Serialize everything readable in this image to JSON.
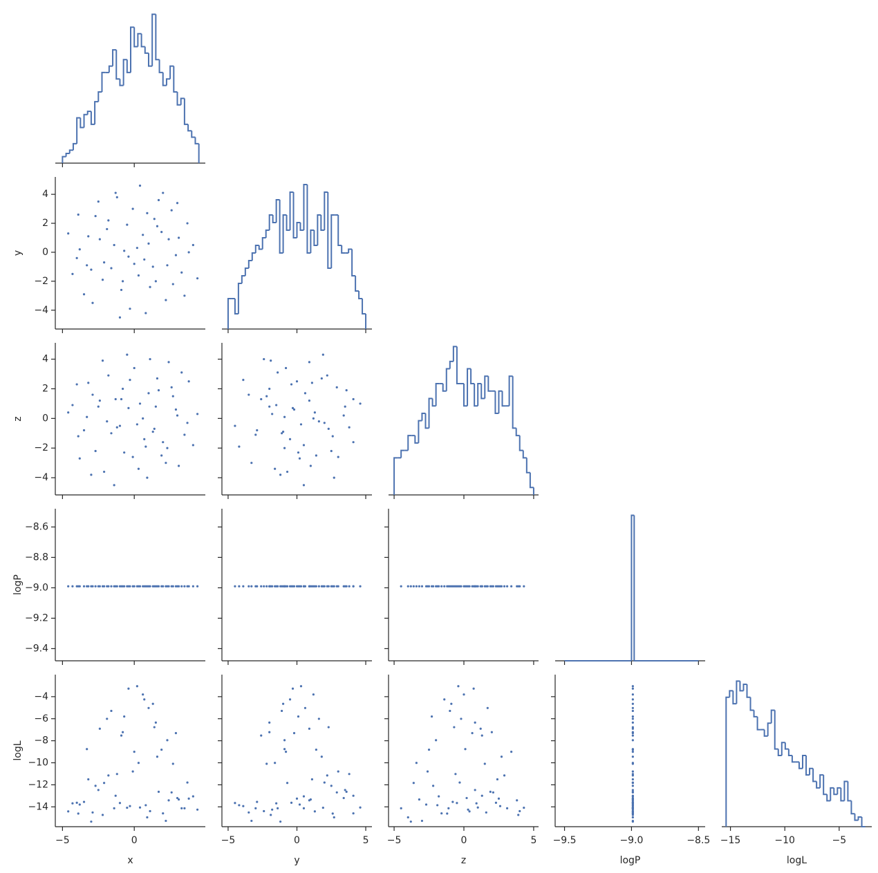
{
  "chart_data": {
    "type": "pairplot",
    "color": "#4c72b0",
    "variables": [
      {
        "name": "x",
        "xlim": [
          -5.5,
          4.95
        ],
        "xticks": [
          {
            "value": -5,
            "label": "−5"
          },
          0
        ],
        "hist": {
          "bins": [
            -5,
            -4.75,
            -4.5,
            -4.25,
            -4,
            -3.75,
            -3.5,
            -3.25,
            -3,
            -2.75,
            -2.5,
            -2.25,
            -2,
            -1.75,
            -1.5,
            -1.25,
            -1,
            -0.75,
            -0.5,
            -0.25,
            0,
            0.25,
            0.5,
            0.75,
            1,
            1.25,
            1.5,
            1.75,
            2,
            2.25,
            2.5,
            2.75,
            3,
            3.25,
            3.5,
            3.75,
            4,
            4.25,
            4.5
          ],
          "counts": [
            2,
            3,
            4,
            6,
            14,
            11,
            15,
            16,
            12,
            19,
            22,
            28,
            28,
            30,
            35,
            26,
            24,
            32,
            28,
            42,
            36,
            40,
            36,
            34,
            30,
            46,
            32,
            28,
            24,
            26,
            30,
            22,
            18,
            20,
            12,
            10,
            8,
            6
          ],
          "ylim": [
            0,
            47
          ]
        },
        "values": [
          0.2,
          1.5,
          -3.2,
          4.1,
          -1.2,
          2.6,
          -4.3,
          0.8,
          -2.1,
          3.3,
          -0.5,
          1.0,
          -2.7,
          2.2,
          -0.9,
          3.7,
          -3.8,
          0.4,
          -1.6,
          1.9,
          -4.6,
          2.9,
          -0.3,
          -2.4,
          0.9,
          3.0,
          -3.5,
          1.3,
          -1.8,
          0.0,
          4.4,
          -2.9,
          2.4,
          -0.7,
          1.7,
          -3.9,
          -1.0,
          3.5,
          0.6,
          -2.2,
          1.1,
          -4.0,
          2.0,
          -1.4,
          0.3,
          -0.1,
          3.8,
          -3.0,
          1.6,
          -0.4,
          2.7,
          -2.5,
          0.7,
          -1.9,
          3.1,
          -3.3,
          1.4,
          -0.8,
          2.3,
          -1.3
        ]
      },
      {
        "name": "y",
        "xlim": [
          -5.45,
          5.45
        ],
        "xticks": [
          {
            "value": -5,
            "label": "−5"
          },
          0,
          5
        ],
        "ylim": [
          -5.3,
          5.2
        ],
        "yticks": [
          {
            "value": -4,
            "label": "−4"
          },
          {
            "value": -2,
            "label": "−2"
          },
          0,
          2,
          4
        ],
        "hist": {
          "bins": [
            -5,
            -4.75,
            -4.5,
            -4.25,
            -4,
            -3.75,
            -3.5,
            -3.25,
            -3,
            -2.75,
            -2.5,
            -2.25,
            -2,
            -1.75,
            -1.5,
            -1.25,
            -1,
            -0.75,
            -0.5,
            -0.25,
            0,
            0.25,
            0.5,
            0.75,
            1,
            1.25,
            1.5,
            1.75,
            2,
            2.25,
            2.5,
            2.75,
            3,
            3.25,
            3.5,
            3.75,
            4,
            4.25,
            4.5,
            4.75,
            5
          ],
          "counts": [
            8,
            8,
            4,
            12,
            14,
            16,
            18,
            20,
            22,
            21,
            24,
            26,
            30,
            28,
            34,
            20,
            30,
            26,
            36,
            24,
            28,
            26,
            38,
            20,
            26,
            22,
            30,
            26,
            36,
            16,
            30,
            30,
            22,
            20,
            20,
            21,
            14,
            10,
            8,
            4
          ],
          "ylim": [
            0,
            40
          ]
        },
        "values": [
          0.3,
          -2.0,
          1.1,
          0.5,
          3.8,
          2.9,
          -1.5,
          -4.2,
          -0.7,
          -1.4,
          1.9,
          0.6,
          2.5,
          -3.3,
          -2.6,
          2.0,
          0.2,
          4.6,
          -1.1,
          1.4,
          1.3,
          -0.2,
          -3.9,
          0.9,
          2.7,
          3.4,
          -2.9,
          -1.0,
          2.2,
          -0.8,
          -1.8,
          -3.5,
          0.9,
          0.1,
          3.6,
          2.6,
          -4.5,
          -3.0,
          1.2,
          -1.9,
          -2.4,
          -0.4,
          4.1,
          0.5,
          -1.6,
          3.0,
          0.0,
          -1.2,
          1.8,
          -0.3,
          -2.2,
          3.5,
          -0.5,
          1.6,
          1.0,
          -0.9,
          2.3,
          -2.0,
          -0.9,
          4.1
        ]
      },
      {
        "name": "z",
        "xlim": [
          -5.4,
          5.35
        ],
        "xticks": [
          {
            "value": -5,
            "label": "−5"
          },
          0,
          5
        ],
        "ylim": [
          -5.16,
          5.1
        ],
        "yticks": [
          {
            "value": -4,
            "label": "−4"
          },
          {
            "value": -2,
            "label": "−2"
          },
          0,
          2,
          4
        ],
        "hist": {
          "bins": [
            -5,
            -4.75,
            -4.5,
            -4.25,
            -4,
            -3.75,
            -3.5,
            -3.25,
            -3,
            -2.75,
            -2.5,
            -2.25,
            -2,
            -1.75,
            -1.5,
            -1.25,
            -1,
            -0.75,
            -0.5,
            -0.25,
            0,
            0.25,
            0.5,
            0.75,
            1,
            1.25,
            1.5,
            1.75,
            2,
            2.25,
            2.5,
            2.75,
            3,
            3.25,
            3.5,
            3.75,
            4,
            4.25,
            4.5,
            4.75,
            5
          ],
          "counts": [
            10,
            10,
            12,
            12,
            16,
            16,
            14,
            20,
            22,
            18,
            26,
            24,
            30,
            30,
            28,
            34,
            36,
            40,
            30,
            30,
            24,
            34,
            30,
            24,
            30,
            26,
            32,
            28,
            28,
            22,
            28,
            24,
            24,
            32,
            18,
            16,
            12,
            10,
            6,
            2
          ],
          "ylim": [
            0,
            41
          ]
        },
        "values": [
          -0.4,
          0.8,
          2.4,
          -1.8,
          -0.6,
          2.1,
          0.9,
          -1.9,
          -3.6,
          3.1,
          4.3,
          1.7,
          -2.2,
          -3.0,
          1.3,
          -0.3,
          -2.7,
          1.0,
          -1.0,
          -2.5,
          0.4,
          0.6,
          2.6,
          1.2,
          -4.0,
          0.2,
          -0.8,
          -0.9,
          2.9,
          3.4,
          0.3,
          1.6,
          3.8,
          -2.3,
          1.9,
          -1.2,
          -0.5,
          -1.1,
          0.0,
          3.9,
          4.0,
          2.3,
          -1.6,
          -4.5,
          -3.4,
          -2.6,
          2.5,
          -3.8,
          2.7,
          0.7,
          1.5,
          0.8,
          -1.4,
          -0.2,
          -3.2,
          0.1,
          -0.7,
          2.0,
          -2.0,
          1.3
        ]
      },
      {
        "name": "logP",
        "xlim": [
          -9.57,
          -8.45
        ],
        "xticks": [
          {
            "value": -9.5,
            "label": "−9.5"
          },
          {
            "value": -9.0,
            "label": "−9.0"
          },
          {
            "value": -8.5,
            "label": "−8.5"
          }
        ],
        "ylim": [
          -9.48,
          -8.48
        ],
        "yticks": [
          {
            "value": -9.4,
            "label": "−9.4"
          },
          {
            "value": -9.2,
            "label": "−9.2"
          },
          {
            "value": -9.0,
            "label": "−9.0"
          },
          {
            "value": -8.8,
            "label": "−8.8"
          },
          {
            "value": -8.6,
            "label": "−8.6"
          }
        ],
        "hist": {
          "bins": [
            -9.5,
            -9.0,
            -8.98,
            -8.5
          ],
          "counts": [
            0,
            1000,
            0
          ],
          "ylim": [
            0,
            1045
          ]
        },
        "values": [
          -8.99,
          -8.99,
          -8.99,
          -8.99,
          -8.99,
          -8.99,
          -8.99,
          -8.99,
          -8.99,
          -8.99,
          -8.99,
          -8.99,
          -8.99,
          -8.99,
          -8.99,
          -8.99,
          -8.99,
          -8.99,
          -8.99,
          -8.99,
          -8.99,
          -8.99,
          -8.99,
          -8.99,
          -8.99,
          -8.99,
          -8.99,
          -8.99,
          -8.99,
          -8.99,
          -8.99,
          -8.99,
          -8.99,
          -8.99,
          -8.99,
          -8.99,
          -8.99,
          -8.99,
          -8.99,
          -8.99,
          -8.99,
          -8.99,
          -8.99,
          -8.99,
          -8.99,
          -8.99,
          -8.99,
          -8.99,
          -8.99,
          -8.99,
          -8.99,
          -8.99,
          -8.99,
          -8.99,
          -8.99,
          -8.99,
          -8.99,
          -8.99,
          -8.99,
          -8.99
        ]
      },
      {
        "name": "logL",
        "xlim": [
          -15.8,
          -2.0
        ],
        "xticks": [
          {
            "value": -15,
            "label": "−15"
          },
          {
            "value": -10,
            "label": "−10"
          },
          {
            "value": -5,
            "label": "−5"
          }
        ],
        "ylim": [
          -15.8,
          -2.0
        ],
        "yticks": [
          {
            "value": -14,
            "label": "−14"
          },
          {
            "value": -12,
            "label": "−12"
          },
          {
            "value": -10,
            "label": "−10"
          },
          {
            "value": -8,
            "label": "−8"
          },
          {
            "value": -6,
            "label": "−6"
          },
          {
            "value": -4,
            "label": "−4"
          }
        ],
        "hist": {
          "bins": [
            -15.4,
            -15.08,
            -14.76,
            -14.44,
            -14.12,
            -13.8,
            -13.48,
            -13.16,
            -12.84,
            -12.52,
            -12.2,
            -11.88,
            -11.56,
            -11.24,
            -10.92,
            -10.6,
            -10.28,
            -9.96,
            -9.64,
            -9.32,
            -9.0,
            -8.68,
            -8.36,
            -8.04,
            -7.72,
            -7.4,
            -7.08,
            -6.76,
            -6.44,
            -6.12,
            -5.8,
            -5.48,
            -5.16,
            -4.84,
            -4.52,
            -4.2,
            -3.88,
            -3.56,
            -3.24,
            -2.92,
            -2.6
          ],
          "counts": [
            40,
            42,
            38,
            45,
            42,
            44,
            40,
            36,
            34,
            30,
            30,
            28,
            32,
            36,
            24,
            22,
            26,
            24,
            22,
            20,
            20,
            18,
            22,
            16,
            18,
            14,
            12,
            16,
            10,
            8,
            12,
            10,
            12,
            8,
            14,
            8,
            4,
            2,
            3,
            0
          ],
          "ylim": [
            0,
            47
          ]
        },
        "values": [
          -3.05,
          -6.35,
          -11.5,
          -13.05,
          -11.02,
          -12.69,
          -13.68,
          -13.85,
          -11.83,
          -14.13,
          -14.08,
          -5.03,
          -12.09,
          -15.27,
          -7.53,
          -11.79,
          -13.79,
          -14.06,
          -5.29,
          -8.81,
          -14.41,
          -7.31,
          -13.93,
          -6.91,
          -14.95,
          -13.2,
          -13.55,
          -4.65,
          -11.15,
          -9.0,
          -14.25,
          -14.51,
          -13.41,
          -5.8,
          -12.63,
          -14.61,
          -13.65,
          -14.13,
          -3.8,
          -14.73,
          -14.39,
          -13.63,
          -14.59,
          -14.13,
          -10.01,
          -10.79,
          -13.25,
          -15.34,
          -9.45,
          -3.27,
          -10.09,
          -12.47,
          -4.25,
          -6.01,
          -13.33,
          -8.76,
          -6.77,
          -7.22,
          -7.95,
          -12.99
        ]
      }
    ]
  }
}
